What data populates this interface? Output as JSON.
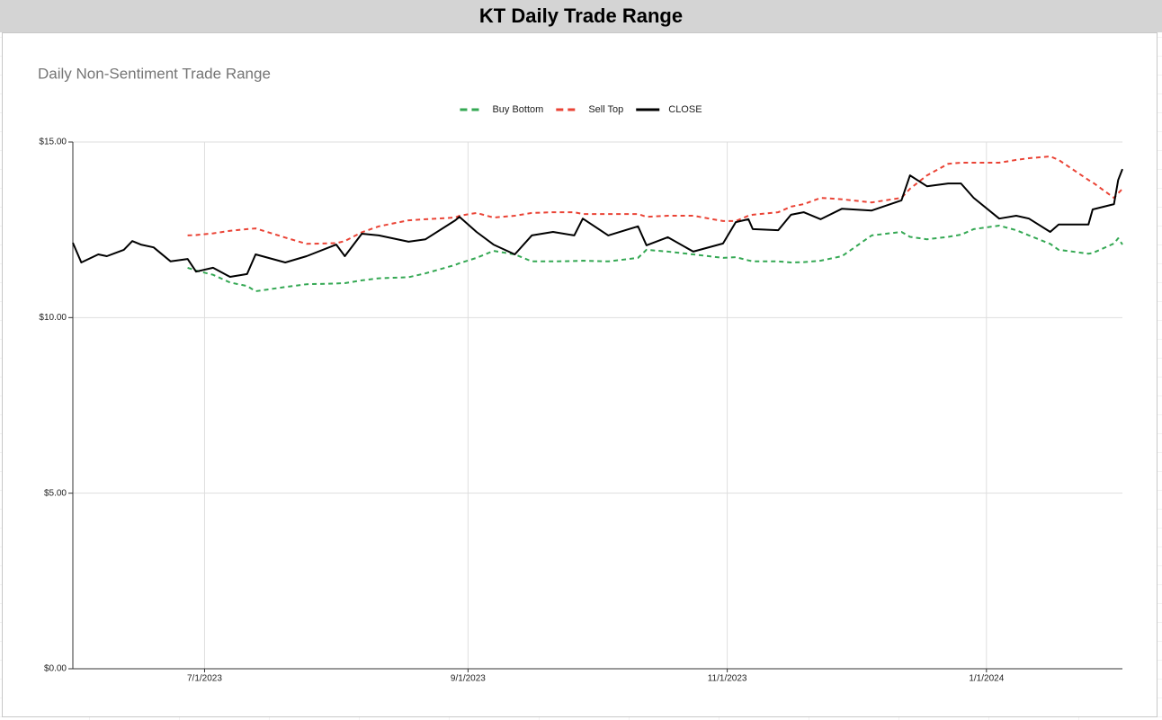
{
  "chart_data": {
    "type": "line",
    "title": "KT Daily Trade Range",
    "subtitle": "Daily Non-Sentiment Trade Range",
    "x": [
      "5/31/2023",
      "6/2/2023",
      "6/6/2023",
      "6/8/2023",
      "6/12/2023",
      "6/14/2023",
      "6/16/2023",
      "6/19/2023",
      "6/23/2023",
      "6/27/2023",
      "6/29/2023",
      "7/3/2023",
      "7/7/2023",
      "7/11/2023",
      "7/13/2023",
      "7/20/2023",
      "7/25/2023",
      "8/1/2023",
      "8/3/2023",
      "8/7/2023",
      "8/11/2023",
      "8/18/2023",
      "8/22/2023",
      "8/29/2023",
      "8/30/2023",
      "9/3/2023",
      "9/7/2023",
      "9/12/2023",
      "9/16/2023",
      "9/21/2023",
      "9/26/2023",
      "9/28/2023",
      "10/4/2023",
      "10/11/2023",
      "10/13/2023",
      "10/18/2023",
      "10/24/2023",
      "10/31/2023",
      "11/3/2023",
      "11/6/2023",
      "11/7/2023",
      "11/13/2023",
      "11/16/2023",
      "11/19/2023",
      "11/23/2023",
      "11/28/2023",
      "12/5/2023",
      "12/12/2023",
      "12/14/2023",
      "12/18/2023",
      "12/23/2023",
      "12/26/2023",
      "12/29/2023",
      "1/4/2024",
      "1/8/2024",
      "1/11/2024",
      "1/16/2024",
      "1/18/2024",
      "1/25/2024",
      "1/26/2024",
      "1/31/2024",
      "2/1/2024",
      "2/2/2024"
    ],
    "series": [
      {
        "name": "Buy Bottom",
        "color": "#34a853",
        "style": "dashed",
        "values": [
          null,
          null,
          null,
          null,
          null,
          null,
          null,
          null,
          null,
          11.42,
          11.34,
          11.22,
          11.0,
          10.9,
          10.75,
          10.87,
          10.95,
          10.97,
          10.98,
          11.06,
          11.12,
          11.15,
          11.26,
          11.5,
          11.55,
          11.7,
          11.9,
          11.8,
          11.6,
          11.6,
          11.61,
          11.62,
          11.6,
          11.7,
          11.93,
          11.88,
          11.8,
          11.7,
          11.72,
          11.63,
          11.6,
          11.6,
          11.57,
          11.58,
          11.62,
          11.75,
          12.34,
          12.44,
          12.3,
          12.23,
          12.3,
          12.36,
          12.52,
          12.62,
          12.49,
          12.34,
          12.1,
          11.93,
          11.82,
          11.84,
          12.11,
          12.26,
          12.08
        ]
      },
      {
        "name": "Sell Top",
        "color": "#ea4335",
        "style": "dashed",
        "values": [
          null,
          null,
          null,
          null,
          null,
          null,
          null,
          null,
          null,
          12.34,
          12.35,
          12.4,
          12.47,
          12.52,
          12.54,
          12.28,
          12.1,
          12.12,
          12.18,
          12.43,
          12.6,
          12.77,
          12.8,
          12.85,
          12.9,
          12.98,
          12.85,
          12.9,
          12.98,
          13.0,
          13.0,
          12.95,
          12.95,
          12.95,
          12.87,
          12.9,
          12.9,
          12.75,
          12.75,
          12.9,
          12.93,
          13.0,
          13.16,
          13.23,
          13.41,
          13.37,
          13.28,
          13.41,
          13.67,
          14.05,
          14.38,
          14.41,
          14.41,
          14.41,
          14.49,
          14.54,
          14.59,
          14.49,
          13.92,
          13.85,
          13.41,
          13.54,
          13.67
        ]
      },
      {
        "name": "CLOSE",
        "color": "#000000",
        "style": "solid",
        "values": [
          12.13,
          11.57,
          11.8,
          11.75,
          11.93,
          12.18,
          12.08,
          12.0,
          11.6,
          11.67,
          11.31,
          11.42,
          11.16,
          11.24,
          11.8,
          11.57,
          11.75,
          12.08,
          11.75,
          12.39,
          12.34,
          12.16,
          12.23,
          12.77,
          12.87,
          12.44,
          12.08,
          11.8,
          12.34,
          12.44,
          12.34,
          12.82,
          12.34,
          12.6,
          12.06,
          12.29,
          11.88,
          12.11,
          12.72,
          12.8,
          12.52,
          12.49,
          12.93,
          13.0,
          12.8,
          13.1,
          13.05,
          13.34,
          14.05,
          13.74,
          13.82,
          13.82,
          13.41,
          12.82,
          12.9,
          12.82,
          12.44,
          12.65,
          12.65,
          13.08,
          13.23,
          13.92,
          14.23
        ]
      }
    ],
    "xlim": [
      "5/31/2023",
      "2/2/2024"
    ],
    "xticks": [
      "7/1/2023",
      "9/1/2023",
      "11/1/2023",
      "1/1/2024"
    ],
    "ylim": [
      0,
      15
    ],
    "yticks": [
      {
        "value": 0,
        "label": "$0.00"
      },
      {
        "value": 5,
        "label": "$5.00"
      },
      {
        "value": 10,
        "label": "$10.00"
      },
      {
        "value": 15,
        "label": "$15.00"
      }
    ],
    "grid": true,
    "legend": "top"
  }
}
